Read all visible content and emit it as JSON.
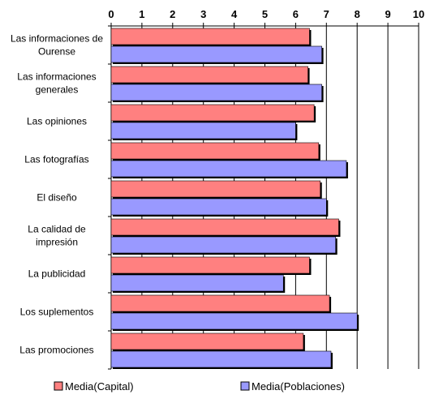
{
  "chart_data": {
    "type": "bar",
    "orientation": "horizontal",
    "categories": [
      [
        "Las informaciones de",
        "Ourense"
      ],
      [
        "Las informaciones",
        "generales"
      ],
      [
        "Las opiniones"
      ],
      [
        "Las fotografías"
      ],
      [
        "El diseño"
      ],
      [
        "La calidad de",
        "impresión"
      ],
      [
        "La publicidad"
      ],
      [
        "Los suplementos"
      ],
      [
        "Las promociones"
      ]
    ],
    "series": [
      {
        "name": "Media(Capital)",
        "color": "#ff8080",
        "values": [
          6.45,
          6.4,
          6.6,
          6.75,
          6.8,
          7.4,
          6.45,
          7.1,
          6.25
        ]
      },
      {
        "name": "Media(Poblaciones)",
        "color": "#9999ff",
        "values": [
          6.85,
          6.85,
          6.0,
          7.65,
          7.0,
          7.3,
          5.6,
          8.0,
          7.15
        ]
      }
    ],
    "xlim": [
      0,
      10
    ],
    "xticks": [
      "0",
      "1",
      "2",
      "3",
      "4",
      "5",
      "6",
      "7",
      "8",
      "9",
      "10"
    ],
    "grid": true,
    "legend_position": "bottom"
  }
}
